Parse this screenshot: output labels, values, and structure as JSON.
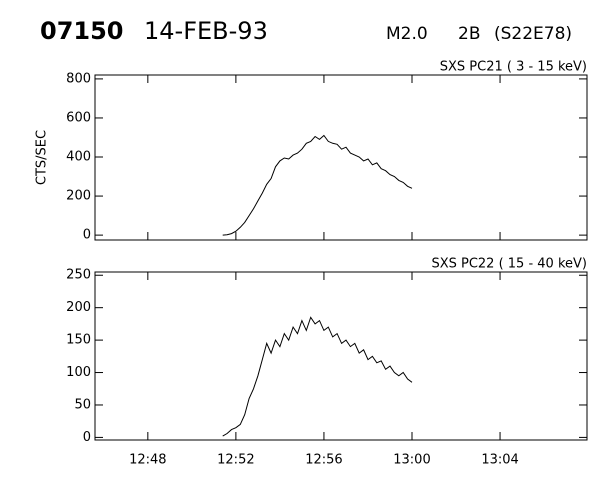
{
  "header": {
    "event": "07150",
    "date": "14-FEB-93",
    "class": "M2.0",
    "importance": "2B",
    "location": "(S22E78)"
  },
  "chart_data": [
    {
      "type": "line",
      "title": "SXS PC21  (  3 - 15 keV)",
      "y_label": "CTS/SEC",
      "color": "#000000",
      "x": [
        51.4,
        51.6,
        51.8,
        52.0,
        52.2,
        52.4,
        52.6,
        52.8,
        53.0,
        53.2,
        53.4,
        53.6,
        53.8,
        54.0,
        54.2,
        54.4,
        54.6,
        54.8,
        55.0,
        55.2,
        55.4,
        55.6,
        55.8,
        56.0,
        56.2,
        56.4,
        56.6,
        56.8,
        57.0,
        57.2,
        57.4,
        57.6,
        57.8,
        58.0,
        58.2,
        58.4,
        58.6,
        58.8,
        59.0,
        59.2,
        59.4,
        59.6,
        59.8,
        60.0
      ],
      "values": [
        0,
        2,
        8,
        20,
        40,
        65,
        100,
        135,
        175,
        215,
        260,
        290,
        350,
        380,
        395,
        390,
        410,
        420,
        440,
        470,
        480,
        505,
        490,
        510,
        480,
        470,
        465,
        440,
        450,
        420,
        410,
        400,
        380,
        390,
        360,
        370,
        340,
        330,
        310,
        300,
        280,
        270,
        250,
        240
      ],
      "xlim": [
        45.6,
        67.95
      ],
      "xticks": [
        48,
        52,
        56,
        60,
        64
      ],
      "ylim": [
        -25,
        820
      ],
      "yticks": [
        0,
        200,
        400,
        600,
        800
      ]
    },
    {
      "type": "line",
      "title": "SXS PC22  ( 15 - 40 keV)",
      "color": "#000000",
      "x": [
        51.4,
        51.6,
        51.8,
        52.0,
        52.2,
        52.4,
        52.6,
        52.8,
        53.0,
        53.2,
        53.4,
        53.6,
        53.8,
        54.0,
        54.2,
        54.4,
        54.6,
        54.8,
        55.0,
        55.2,
        55.4,
        55.6,
        55.8,
        56.0,
        56.2,
        56.4,
        56.6,
        56.8,
        57.0,
        57.2,
        57.4,
        57.6,
        57.8,
        58.0,
        58.2,
        58.4,
        58.6,
        58.8,
        59.0,
        59.2,
        59.4,
        59.6,
        59.8,
        60.0
      ],
      "values": [
        2,
        6,
        12,
        15,
        20,
        35,
        60,
        75,
        95,
        120,
        145,
        130,
        150,
        140,
        160,
        150,
        170,
        160,
        180,
        165,
        185,
        175,
        180,
        165,
        170,
        155,
        160,
        145,
        150,
        140,
        145,
        130,
        135,
        120,
        125,
        115,
        118,
        105,
        110,
        100,
        95,
        100,
        90,
        85
      ],
      "xlim": [
        45.6,
        67.95
      ],
      "xticks": [
        {
          "value": 48,
          "label": "12:48"
        },
        {
          "value": 52,
          "label": "12:52"
        },
        {
          "value": 56,
          "label": "12:56"
        },
        {
          "value": 60,
          "label": "13:00"
        },
        {
          "value": 64,
          "label": "13:04"
        }
      ],
      "ylim": [
        -4,
        255
      ],
      "yticks": [
        0,
        50,
        100,
        150,
        200,
        250
      ]
    }
  ]
}
